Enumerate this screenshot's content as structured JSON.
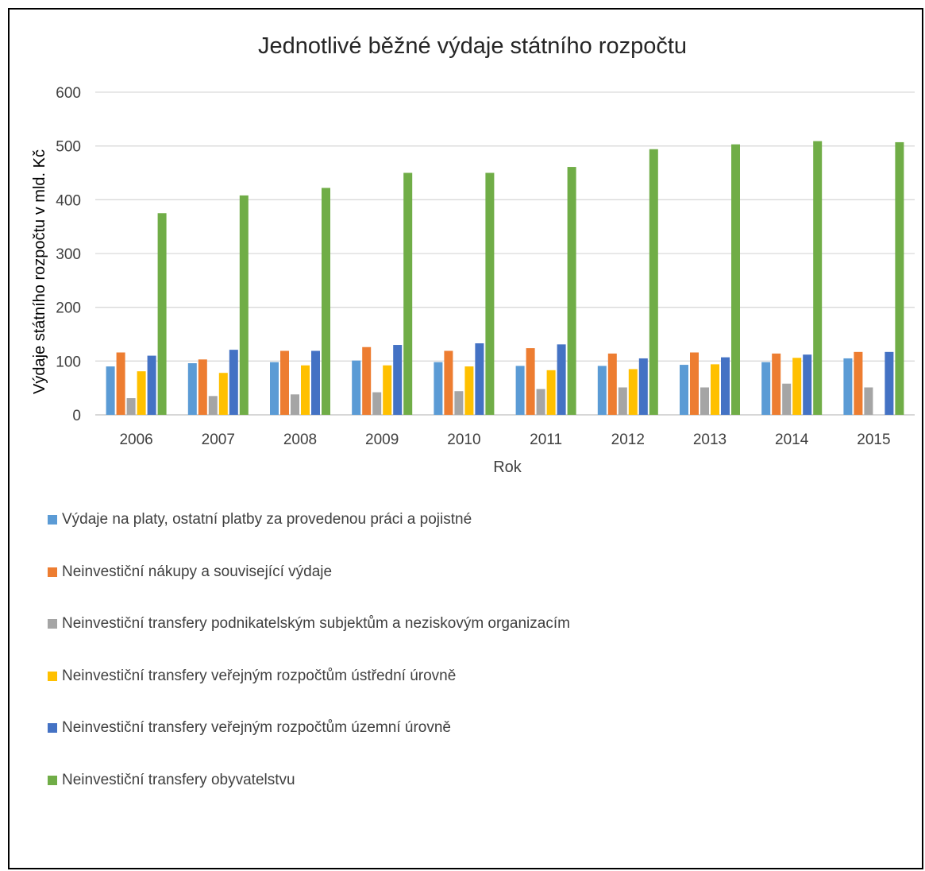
{
  "chart_data": {
    "type": "bar",
    "title": "Jednotlivé běžné výdaje státního rozpočtu",
    "xlabel": "Rok",
    "ylabel": "Výdaje státního rozpočtu v mld. Kč",
    "ylim": [
      0,
      600
    ],
    "yticks": [
      "0",
      "100",
      "200",
      "300",
      "400",
      "500",
      "600"
    ],
    "grid": true,
    "legend_position": "bottom",
    "categories": [
      "2006",
      "2007",
      "2008",
      "2009",
      "2010",
      "2011",
      "2012",
      "2013",
      "2014",
      "2015"
    ],
    "series": [
      {
        "name": "Výdaje na platy, ostatní platby za provedenou práci a pojistné",
        "color": "#5B9BD5",
        "values": [
          90,
          96,
          98,
          101,
          98,
          91,
          91,
          93,
          98,
          105
        ]
      },
      {
        "name": "Neinvestiční nákupy a související výdaje",
        "color": "#ED7D31",
        "values": [
          116,
          103,
          119,
          126,
          119,
          124,
          114,
          116,
          114,
          117
        ]
      },
      {
        "name": "Neinvestiční transfery podnikatelským subjektům a neziskovým organizacím",
        "color": "#A5A5A5",
        "values": [
          31,
          35,
          38,
          42,
          44,
          48,
          51,
          51,
          58,
          51
        ]
      },
      {
        "name": "Neinvestiční transfery veřejným rozpočtům ústřední úrovně",
        "color": "#FFC000",
        "values": [
          81,
          78,
          92,
          92,
          90,
          83,
          85,
          94,
          106,
          0
        ]
      },
      {
        "name": "Neinvestiční  transfery veřejným rozpočtům územní úrovně",
        "color": "#4472C4",
        "values": [
          110,
          121,
          119,
          130,
          133,
          131,
          105,
          107,
          112,
          117
        ]
      },
      {
        "name": "Neinvestiční transfery obyvatelstvu",
        "color": "#70AD47",
        "values": [
          375,
          408,
          422,
          450,
          450,
          461,
          494,
          503,
          509,
          507
        ]
      }
    ]
  }
}
